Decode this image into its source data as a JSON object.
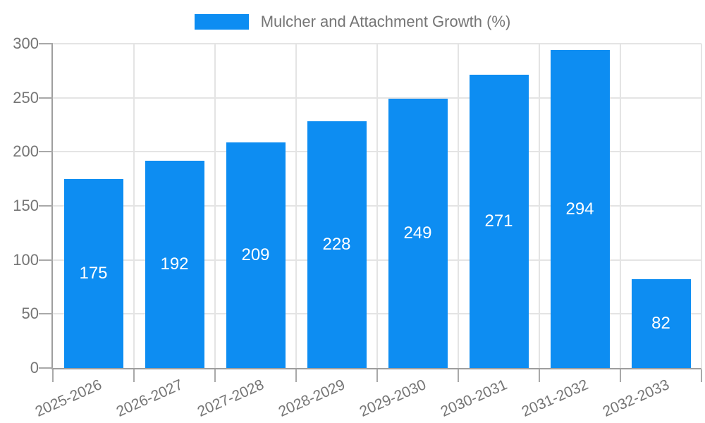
{
  "colors": {
    "bar": "#0d8df2",
    "grid": "#e4e4e4",
    "axis": "#9e9e9e",
    "tick": "#a9a9a9",
    "text": "#757575",
    "bar_label": "#ffffff"
  },
  "chart_data": {
    "type": "bar",
    "title": "Mulcher and Attachment Growth (%)",
    "xlabel": "",
    "ylabel": "",
    "categories": [
      "2025-2026",
      "2026-2027",
      "2027-2028",
      "2028-2029",
      "2029-2030",
      "2030-2031",
      "2031-2032",
      "2032-2033"
    ],
    "values": [
      175,
      192,
      209,
      228,
      249,
      271,
      294,
      82
    ],
    "yticks": [
      0,
      50,
      100,
      150,
      200,
      250,
      300
    ],
    "ylim": [
      0,
      300
    ],
    "grid": true,
    "legend_position": "top-center",
    "value_labels": "inside-center",
    "x_label_rotation_deg": -24
  }
}
